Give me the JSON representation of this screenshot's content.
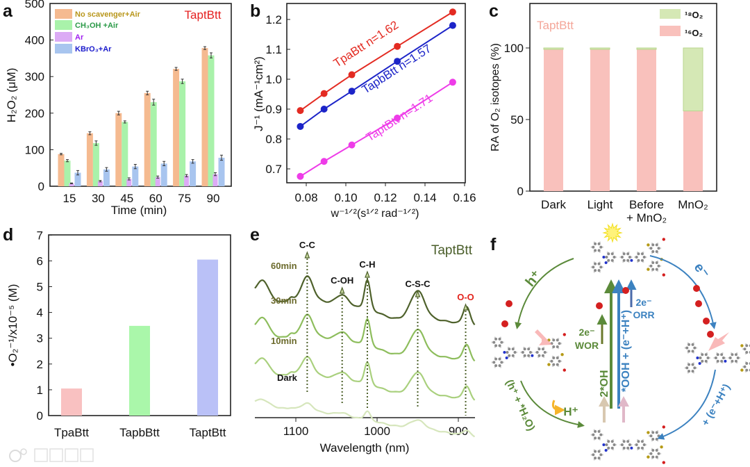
{
  "panel_letters": [
    "a",
    "b",
    "c",
    "d",
    "e",
    "f"
  ],
  "watermark": {
    "text": "大数跨境"
  },
  "chart_data": [
    {
      "type": "bar",
      "title": "TaptBtt",
      "xlabel": "Time (min)",
      "ylabel": "H₂O₂ (μM)",
      "ylim": [
        0,
        500
      ],
      "yticks": [
        "0",
        "100",
        "200",
        "300",
        "400",
        "500"
      ],
      "categories": [
        "15",
        "30",
        "45",
        "60",
        "75",
        "90"
      ],
      "legend_position": "top-left",
      "series": [
        {
          "name": "No scavenger+Air",
          "color": "#f5ba90",
          "text_color": "#b8961a",
          "values": [
            88,
            145,
            200,
            255,
            321,
            378
          ],
          "errors": [
            2,
            4,
            5,
            5,
            4,
            4
          ]
        },
        {
          "name": "CH₃OH +Air",
          "color": "#a9f2aa",
          "text_color": "#2b9a48",
          "values": [
            70,
            118,
            176,
            230,
            287,
            358
          ],
          "errors": [
            3,
            6,
            3,
            8,
            6,
            7
          ]
        },
        {
          "name": "Ar",
          "color": "#dcaaf5",
          "text_color": "#a01ff0",
          "values": [
            8,
            14,
            20,
            25,
            29,
            33
          ],
          "errors": [
            1,
            2,
            3,
            3,
            3,
            4
          ]
        },
        {
          "name": "KBrO₃+Ar",
          "color": "#a8c5ef",
          "text_color": "#1a1acc",
          "values": [
            37,
            46,
            54,
            62,
            68,
            78
          ],
          "errors": [
            6,
            5,
            6,
            6,
            5,
            7
          ]
        }
      ]
    },
    {
      "type": "line",
      "xlabel": "w⁻¹ᐟ²(s¹ᐟ² rad⁻¹ᐟ²)",
      "ylabel": "J⁻¹ (mA⁻¹cm²)",
      "xlim": [
        0.07,
        0.16
      ],
      "ylim": [
        0.65,
        1.25
      ],
      "xticks": [
        "0.08",
        "0.10",
        "0.12",
        "0.14",
        "0.16"
      ],
      "yticks": [
        "0.7",
        "0.8",
        "0.9",
        "1.0",
        "1.1",
        "1.2"
      ],
      "x": [
        0.077,
        0.089,
        0.103,
        0.126,
        0.154
      ],
      "series": [
        {
          "name": "TpaBtt",
          "label": "TpaBtt n=1.62",
          "n": 1.62,
          "color": "#e32b22",
          "values": [
            0.895,
            0.952,
            1.015,
            1.11,
            1.225
          ]
        },
        {
          "name": "TapbBtt",
          "label": "TapbBtt n=1.57",
          "n": 1.57,
          "color": "#1c24c8",
          "values": [
            0.842,
            0.9,
            0.96,
            1.06,
            1.18
          ]
        },
        {
          "name": "TaptBtt",
          "label": "TaptBtt n=1.71",
          "n": 1.71,
          "color": "#ee3ce8",
          "values": [
            0.675,
            0.725,
            0.78,
            0.87,
            0.99
          ]
        }
      ]
    },
    {
      "type": "bar",
      "stacked": true,
      "title": "TaptBtt",
      "ylabel": "RA of O₂ isotopes (%)",
      "ylim": [
        0,
        130
      ],
      "yticks": [
        "0",
        "50",
        "100"
      ],
      "categories": [
        [
          "Dark"
        ],
        [
          "Light"
        ],
        [
          "Before",
          "+ MnO₂"
        ],
        [
          "MnO₂"
        ]
      ],
      "legend_position": "top-right",
      "series": [
        {
          "name": "¹⁶O₂",
          "color": "#f9c1bc",
          "values": [
            99,
            99,
            99,
            56
          ]
        },
        {
          "name": "¹⁸O₂",
          "color": "#d5e8b5",
          "values": [
            1,
            1,
            1,
            44
          ]
        }
      ]
    },
    {
      "type": "bar",
      "ylabel": "•O₂⁻¹/x10⁻⁵ (M)",
      "ylim": [
        0,
        7
      ],
      "yticks": [
        "0",
        "1",
        "2",
        "3",
        "4",
        "5",
        "6",
        "7"
      ],
      "categories": [
        "TpaBtt",
        "TapbBtt",
        "TaptBtt"
      ],
      "values": [
        1.05,
        3.48,
        6.05
      ],
      "colors": [
        "#f9c1c1",
        "#aaf7aa",
        "#bac1f7"
      ]
    },
    {
      "type": "line",
      "title": "TaptBtt",
      "xlabel": "Wavelength (nm)",
      "xlim": [
        1150,
        880
      ],
      "xticks": [
        "1100",
        "1000",
        "900"
      ],
      "peaks": [
        {
          "label": "C-C",
          "position": 1086,
          "color": "#111111"
        },
        {
          "label": "C-OH",
          "position": 1043,
          "color": "#111111"
        },
        {
          "label": "C-H",
          "position": 1012,
          "color": "#111111"
        },
        {
          "label": "C-S-C",
          "position": 950,
          "color": "#111111"
        },
        {
          "label": "O-O",
          "position": 891,
          "color": "#e3231c"
        }
      ],
      "series": [
        {
          "name": "60min",
          "color": "#4e612b",
          "label_color": "#6b6a2c",
          "intensity": 1.0
        },
        {
          "name": "30min",
          "color": "#8dbd5c",
          "label_color": "#6b6a2c",
          "intensity": 0.9
        },
        {
          "name": "10min",
          "color": "#a9d07d",
          "label_color": "#6b6a2c",
          "intensity": 0.75
        },
        {
          "name": "Dark",
          "color": "#d6e6bc",
          "label_color": "#111111",
          "intensity": 0.3
        }
      ]
    }
  ],
  "diagram_f": {
    "labels": {
      "h_plus": "h⁺",
      "e_minus": "e⁻",
      "wor_e": "2e⁻",
      "wor": "WOR",
      "orr_e": "2e⁻",
      "orr": "ORR",
      "two_oh": "2*OH",
      "ooh": "*OOH + (e⁻+H⁺)",
      "h2o_step": "(h⁺ + *H₂O)",
      "proton": "H⁺",
      "eh_step": "+ (e⁻+H⁺)"
    },
    "colors": {
      "green": "#5b8a3a",
      "blue": "#3c82c0",
      "olive": "#6b7a2c",
      "orange": "#f5b52a"
    }
  }
}
